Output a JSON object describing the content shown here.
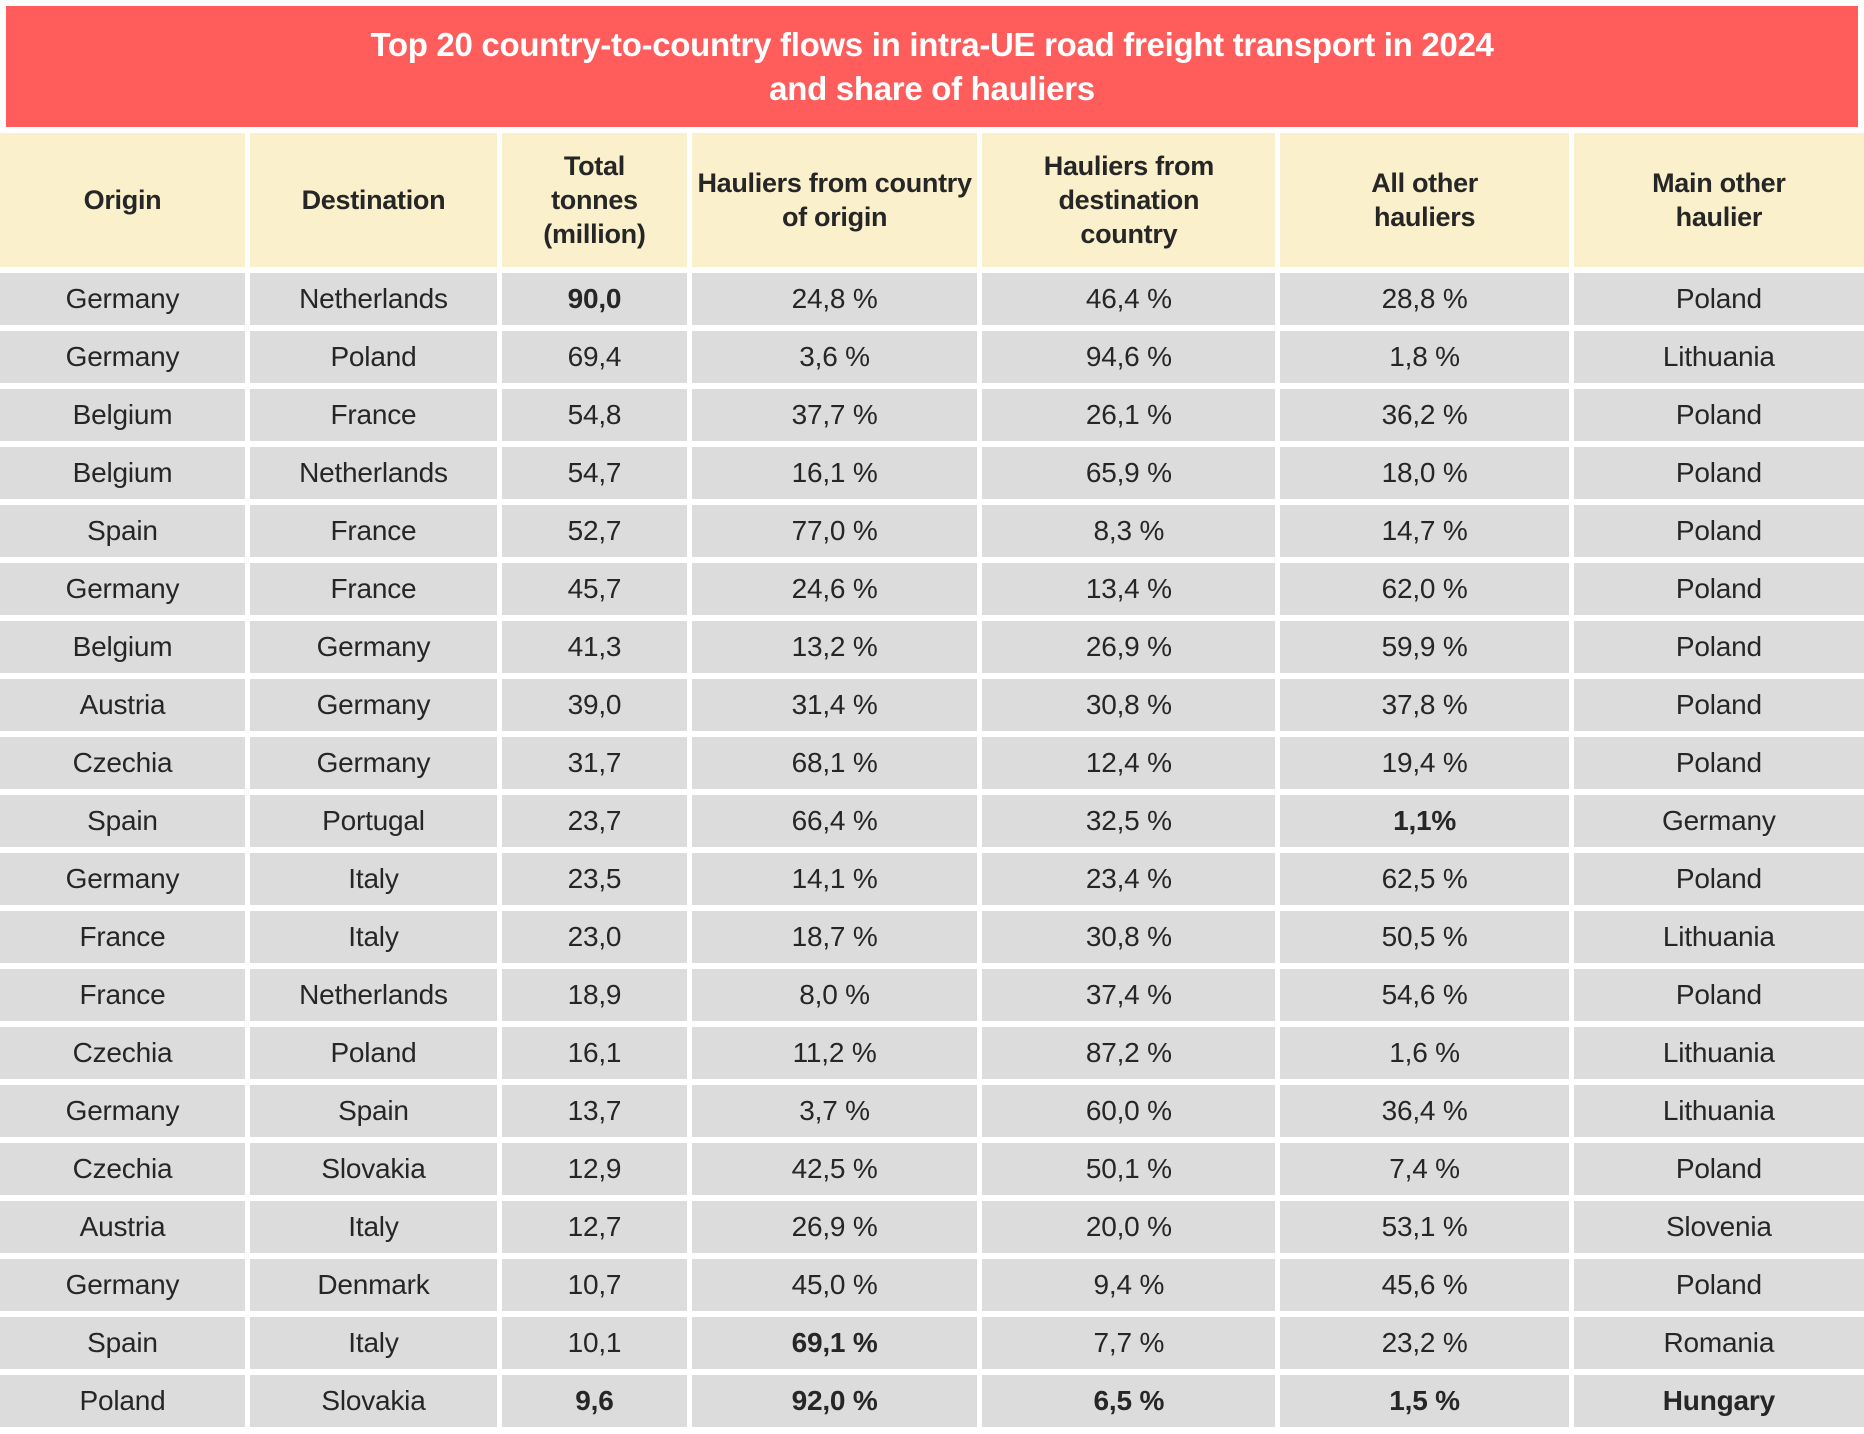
{
  "colors": {
    "title_bg": "#FF5C5C",
    "title_text": "#FFFFFF",
    "header_bg": "#FAF0CC",
    "row_bg": "#DCDCDC",
    "gap": "#FFFFFF",
    "text": "#262626"
  },
  "chart_data": {
    "type": "table",
    "title": "Top 20 country-to-country flows in intra-UE road freight transport in 2024 and share of hauliers",
    "title_lines": [
      "Top 20 country-to-country flows in intra-UE road freight transport in 2024",
      "and share of hauliers"
    ],
    "columns": [
      {
        "key": "origin",
        "label": "Origin"
      },
      {
        "key": "destination",
        "label": "Destination"
      },
      {
        "key": "tonnes",
        "label": "Total tonnes (million)"
      },
      {
        "key": "origin_share",
        "label": "Hauliers from country of origin"
      },
      {
        "key": "dest_share",
        "label": "Hauliers from destination country"
      },
      {
        "key": "other_share",
        "label": "All other hauliers"
      },
      {
        "key": "main_other",
        "label": "Main other haulier"
      }
    ],
    "rows": [
      {
        "origin": "Germany",
        "destination": "Netherlands",
        "tonnes": "90,0",
        "origin_share": "24,8 %",
        "dest_share": "46,4 %",
        "other_share": "28,8 %",
        "main_other": "Poland",
        "bold": [
          "tonnes"
        ]
      },
      {
        "origin": "Germany",
        "destination": "Poland",
        "tonnes": "69,4",
        "origin_share": "3,6 %",
        "dest_share": "94,6 %",
        "other_share": "1,8 %",
        "main_other": "Lithuania",
        "bold": []
      },
      {
        "origin": "Belgium",
        "destination": "France",
        "tonnes": "54,8",
        "origin_share": "37,7 %",
        "dest_share": "26,1 %",
        "other_share": "36,2 %",
        "main_other": "Poland",
        "bold": []
      },
      {
        "origin": "Belgium",
        "destination": "Netherlands",
        "tonnes": "54,7",
        "origin_share": "16,1 %",
        "dest_share": "65,9 %",
        "other_share": "18,0 %",
        "main_other": "Poland",
        "bold": []
      },
      {
        "origin": "Spain",
        "destination": "France",
        "tonnes": "52,7",
        "origin_share": "77,0 %",
        "dest_share": "8,3 %",
        "other_share": "14,7 %",
        "main_other": "Poland",
        "bold": []
      },
      {
        "origin": "Germany",
        "destination": "France",
        "tonnes": "45,7",
        "origin_share": "24,6 %",
        "dest_share": "13,4 %",
        "other_share": "62,0 %",
        "main_other": "Poland",
        "bold": []
      },
      {
        "origin": "Belgium",
        "destination": "Germany",
        "tonnes": "41,3",
        "origin_share": "13,2 %",
        "dest_share": "26,9 %",
        "other_share": "59,9 %",
        "main_other": "Poland",
        "bold": []
      },
      {
        "origin": "Austria",
        "destination": "Germany",
        "tonnes": "39,0",
        "origin_share": "31,4 %",
        "dest_share": "30,8 %",
        "other_share": "37,8 %",
        "main_other": "Poland",
        "bold": []
      },
      {
        "origin": "Czechia",
        "destination": "Germany",
        "tonnes": "31,7",
        "origin_share": "68,1 %",
        "dest_share": "12,4 %",
        "other_share": "19,4 %",
        "main_other": "Poland",
        "bold": []
      },
      {
        "origin": "Spain",
        "destination": "Portugal",
        "tonnes": "23,7",
        "origin_share": "66,4 %",
        "dest_share": "32,5 %",
        "other_share": "1,1%",
        "main_other": "Germany",
        "bold": [
          "other_share"
        ]
      },
      {
        "origin": "Germany",
        "destination": "Italy",
        "tonnes": "23,5",
        "origin_share": "14,1 %",
        "dest_share": "23,4 %",
        "other_share": "62,5 %",
        "main_other": "Poland",
        "bold": []
      },
      {
        "origin": "France",
        "destination": "Italy",
        "tonnes": "23,0",
        "origin_share": "18,7 %",
        "dest_share": "30,8 %",
        "other_share": "50,5 %",
        "main_other": "Lithuania",
        "bold": []
      },
      {
        "origin": "France",
        "destination": "Netherlands",
        "tonnes": "18,9",
        "origin_share": "8,0 %",
        "dest_share": "37,4 %",
        "other_share": "54,6 %",
        "main_other": "Poland",
        "bold": []
      },
      {
        "origin": "Czechia",
        "destination": "Poland",
        "tonnes": "16,1",
        "origin_share": "11,2 %",
        "dest_share": "87,2 %",
        "other_share": "1,6 %",
        "main_other": "Lithuania",
        "bold": []
      },
      {
        "origin": "Germany",
        "destination": "Spain",
        "tonnes": "13,7",
        "origin_share": "3,7 %",
        "dest_share": "60,0 %",
        "other_share": "36,4 %",
        "main_other": "Lithuania",
        "bold": []
      },
      {
        "origin": "Czechia",
        "destination": "Slovakia",
        "tonnes": "12,9",
        "origin_share": "42,5 %",
        "dest_share": "50,1 %",
        "other_share": "7,4 %",
        "main_other": "Poland",
        "bold": []
      },
      {
        "origin": "Austria",
        "destination": "Italy",
        "tonnes": "12,7",
        "origin_share": "26,9 %",
        "dest_share": "20,0 %",
        "other_share": "53,1 %",
        "main_other": "Slovenia",
        "bold": []
      },
      {
        "origin": "Germany",
        "destination": "Denmark",
        "tonnes": "10,7",
        "origin_share": "45,0 %",
        "dest_share": "9,4 %",
        "other_share": "45,6 %",
        "main_other": "Poland",
        "bold": []
      },
      {
        "origin": "Spain",
        "destination": "Italy",
        "tonnes": "10,1",
        "origin_share": "69,1 %",
        "dest_share": "7,7 %",
        "other_share": "23,2 %",
        "main_other": "Romania",
        "bold": [
          "origin_share"
        ]
      },
      {
        "origin": "Poland",
        "destination": "Slovakia",
        "tonnes": "9,6",
        "origin_share": "92,0 %",
        "dest_share": "6,5 %",
        "other_share": "1,5 %",
        "main_other": "Hungary",
        "bold": [
          "tonnes",
          "origin_share",
          "dest_share",
          "other_share",
          "main_other"
        ]
      }
    ]
  }
}
